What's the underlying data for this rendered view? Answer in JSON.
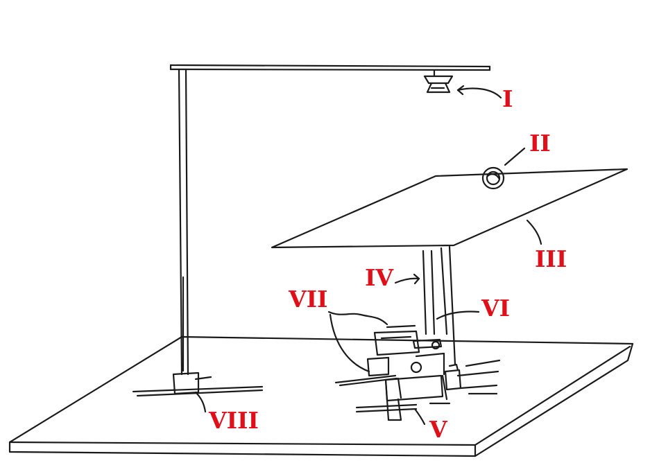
{
  "labels": {
    "I": "I",
    "II": "II",
    "III": "III",
    "IV": "IV",
    "V": "V",
    "VI": "VI",
    "VII": "VII",
    "VIII": "VIII"
  },
  "colors": {
    "label": "#e0101a",
    "ink": "#1a1a1a",
    "background": "#ffffff"
  }
}
